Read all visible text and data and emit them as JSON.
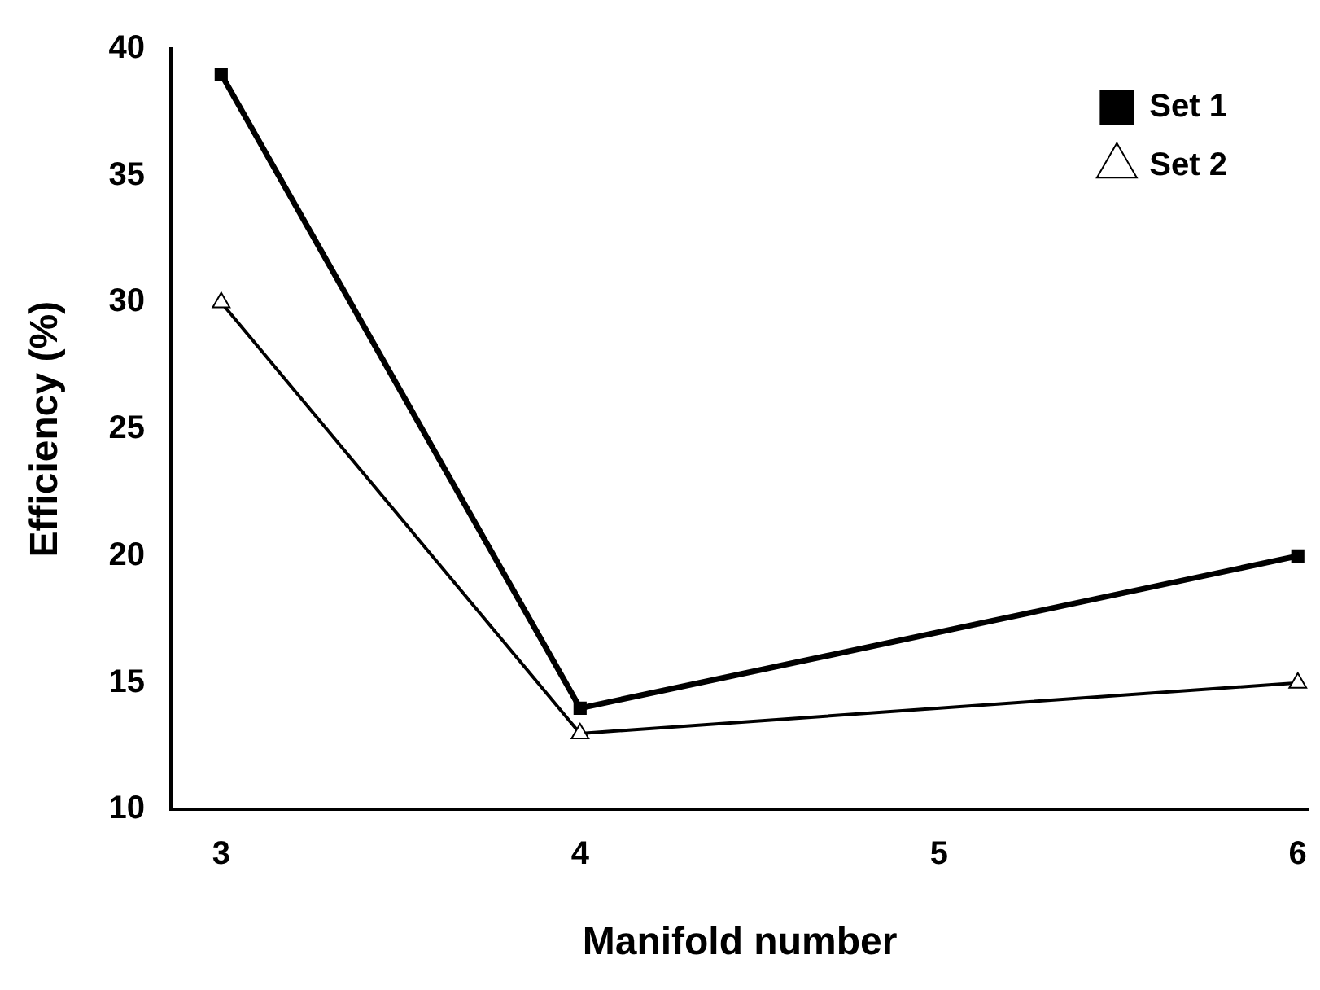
{
  "chart_data": {
    "type": "line",
    "xlabel": "Manifold number",
    "ylabel": "Efficiency (%)",
    "x": [
      3,
      4,
      6
    ],
    "series": [
      {
        "name": "Set 1",
        "color": "#000000",
        "values": [
          39,
          14,
          20
        ],
        "marker": "square"
      },
      {
        "name": "Set 2",
        "color": "#000000",
        "values": [
          30,
          13,
          15
        ],
        "marker": "triangle"
      }
    ],
    "xlim": [
      2.86,
      6.03
    ],
    "xticks": [
      3,
      4,
      5,
      6
    ],
    "ylim": [
      10,
      40
    ],
    "yticks": [
      10,
      15,
      20,
      25,
      30,
      35,
      40
    ],
    "legend": "top right",
    "grid": false,
    "line_style": "solid"
  }
}
